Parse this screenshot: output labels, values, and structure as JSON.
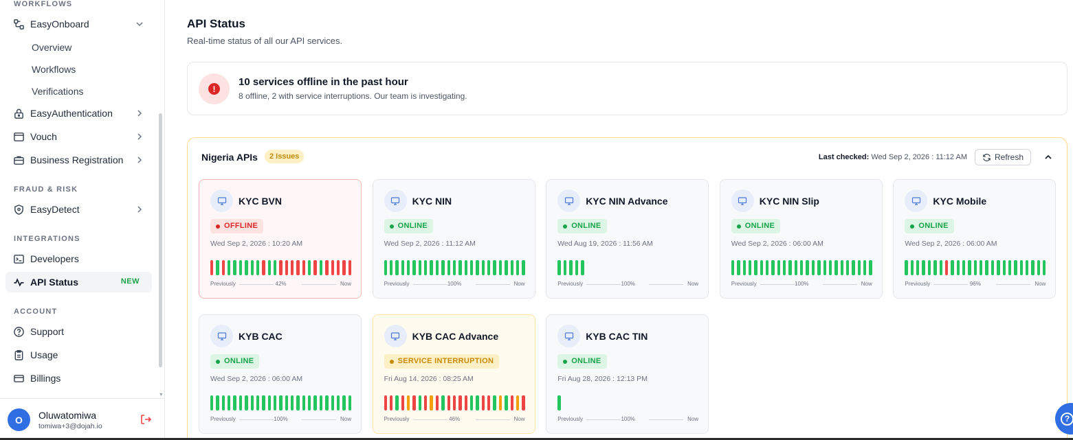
{
  "sidebar": {
    "sections": {
      "workflows": "WORKFLOWS",
      "fraud": "FRAUD & RISK",
      "integrations": "INTEGRATIONS",
      "account": "ACCOUNT"
    },
    "easy_onboard": {
      "label": "EasyOnboard",
      "icon": "workflow-icon",
      "expanded": true,
      "children": [
        "Overview",
        "Workflows",
        "Verifications"
      ]
    },
    "easy_auth": {
      "label": "EasyAuthentication",
      "icon": "lock-icon"
    },
    "vouch": {
      "label": "Vouch",
      "icon": "window-icon"
    },
    "business_reg": {
      "label": "Business Registration",
      "icon": "briefcase-icon"
    },
    "easy_detect": {
      "label": "EasyDetect",
      "icon": "shield-icon"
    },
    "developers": {
      "label": "Developers",
      "icon": "terminal-icon"
    },
    "api_status": {
      "label": "API Status",
      "icon": "activity-icon",
      "badge": "NEW",
      "active": true
    },
    "support": {
      "label": "Support",
      "icon": "help-circle-icon"
    },
    "usage": {
      "label": "Usage",
      "icon": "clipboard-icon"
    },
    "billings": {
      "label": "Billings",
      "icon": "credit-card-icon"
    }
  },
  "user": {
    "initial": "O",
    "name": "Oluwatomiwa",
    "email": "tomiwa+3@dojah.io"
  },
  "header": {
    "title": "API Status",
    "subtitle": "Real-time status of all our API services."
  },
  "alert": {
    "title": "10 services offline in the past hour",
    "description": "8 offline, 2 with service interruptions. Our team is investigating."
  },
  "region": {
    "title": "Nigeria APIs",
    "issues": "2 Issues",
    "last_checked_label": "Last checked:",
    "last_checked_value": "Wed Sep 2, 2026 : 11:12 AM",
    "refresh_label": "Refresh"
  },
  "uptime_labels": {
    "previously": "Previously",
    "now": "Now"
  },
  "colors": {
    "online": "#22c55e",
    "offline": "#ef4444",
    "interruption": "#f59e0b",
    "accent": "#2f6fe3"
  },
  "services": [
    {
      "name": "KYC BVN",
      "status": "offline",
      "status_label": "OFFLINE",
      "time": "Wed Sep 2, 2026 : 10:20 AM",
      "uptime": "42%",
      "bars": [
        "r",
        "g",
        "r",
        "g",
        "g",
        "g",
        "g",
        "g",
        "g",
        "r",
        "g",
        "g",
        "r",
        "r",
        "r",
        "r",
        "r",
        "g",
        "r",
        "g",
        "r",
        "r",
        "r",
        "r",
        "r"
      ]
    },
    {
      "name": "KYC NIN",
      "status": "online",
      "status_label": "ONLINE",
      "time": "Wed Sep 2, 2026 : 11:12 AM",
      "uptime": "100%",
      "bars": [
        "g",
        "g",
        "g",
        "g",
        "g",
        "g",
        "g",
        "g",
        "g",
        "g",
        "g",
        "g",
        "g",
        "g",
        "g",
        "g",
        "g",
        "g",
        "g",
        "g",
        "g",
        "g",
        "g",
        "g",
        "g"
      ]
    },
    {
      "name": "KYC NIN Advance",
      "status": "online",
      "status_label": "ONLINE",
      "time": "Wed Aug 19, 2026 : 11:56 AM",
      "uptime": "100%",
      "bars": [
        "g",
        "g",
        "g",
        "g",
        "g"
      ]
    },
    {
      "name": "KYC NIN Slip",
      "status": "online",
      "status_label": "ONLINE",
      "time": "Wed Sep 2, 2026 : 06:00 AM",
      "uptime": "100%",
      "bars": [
        "g",
        "g",
        "g",
        "g",
        "g",
        "g",
        "g",
        "g",
        "g",
        "g",
        "g",
        "g",
        "g",
        "g",
        "g",
        "g",
        "g",
        "g",
        "g",
        "g",
        "g",
        "g",
        "g",
        "g",
        "g"
      ]
    },
    {
      "name": "KYC Mobile",
      "status": "online",
      "status_label": "ONLINE",
      "time": "Wed Sep 2, 2026 : 06:00 AM",
      "uptime": "96%",
      "bars": [
        "g",
        "g",
        "g",
        "g",
        "g",
        "g",
        "g",
        "r",
        "g",
        "g",
        "g",
        "g",
        "g",
        "g",
        "g",
        "g",
        "g",
        "g",
        "g",
        "g",
        "g",
        "g",
        "g",
        "g",
        "g"
      ]
    },
    {
      "name": "KYB CAC",
      "status": "online",
      "status_label": "ONLINE",
      "time": "Wed Sep 2, 2026 : 06:00 AM",
      "uptime": "100%",
      "bars": [
        "g",
        "g",
        "g",
        "g",
        "g",
        "g",
        "g",
        "g",
        "g",
        "g",
        "g",
        "g",
        "g",
        "g",
        "g",
        "g",
        "g",
        "g",
        "g",
        "g",
        "g",
        "g",
        "g",
        "g",
        "g"
      ]
    },
    {
      "name": "KYB CAC Advance",
      "status": "interruption",
      "status_label": "SERVICE INTERRUPTION",
      "time": "Fri Aug 14, 2026 : 08:25 AM",
      "uptime": "46%",
      "bars": [
        "r",
        "r",
        "g",
        "r",
        "o",
        "r",
        "g",
        "r",
        "o",
        "r",
        "g",
        "r",
        "r",
        "r",
        "r",
        "g",
        "g",
        "r",
        "r",
        "g",
        "o",
        "g",
        "r",
        "o",
        "r"
      ]
    },
    {
      "name": "KYB CAC TIN",
      "status": "online",
      "status_label": "ONLINE",
      "time": "Fri Aug 28, 2026 : 12:13 PM",
      "uptime": "100%",
      "bars": [
        "g"
      ]
    }
  ]
}
